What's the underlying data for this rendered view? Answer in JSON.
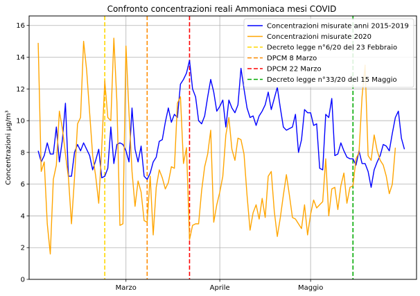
{
  "chart_data": {
    "type": "line",
    "title": "Confronto concentrazioni reali Ammoniaca mesi COVID",
    "xlabel": "",
    "ylabel": "Concentrazioni µg/m³",
    "x_ticks": [
      {
        "label": "Marzo",
        "day": 29
      },
      {
        "label": "Aprile",
        "day": 60
      },
      {
        "label": "Maggio",
        "day": 90
      }
    ],
    "xlim": [
      -3,
      125
    ],
    "ylim": [
      0,
      16.6
    ],
    "y_ticks": [
      0,
      2,
      4,
      6,
      8,
      10,
      12,
      14,
      16
    ],
    "grid": true,
    "legend_position": "top-right",
    "series": [
      {
        "name": "Concentrazioni misurate anni 2015-2019",
        "color": "#0000ff",
        "values": [
          8.1,
          7.4,
          7.8,
          8.6,
          7.9,
          7.9,
          9.6,
          7.4,
          8.8,
          11.1,
          6.5,
          6.5,
          8.0,
          8.5,
          8.1,
          8.6,
          8.2,
          7.8,
          6.9,
          7.5,
          8.2,
          6.4,
          6.5,
          7.0,
          9.6,
          7.3,
          8.5,
          8.6,
          8.5,
          8.1,
          7.4,
          10.8,
          8.2,
          7.4,
          8.4,
          6.5,
          6.3,
          6.7,
          7.4,
          7.7,
          8.7,
          8.8,
          9.9,
          10.8,
          9.9,
          10.4,
          10.2,
          12.3,
          12.6,
          13.0,
          13.8,
          12.0,
          11.5,
          10.0,
          9.8,
          10.3,
          11.5,
          12.6,
          11.8,
          10.6,
          10.9,
          11.3,
          9.6,
          11.3,
          10.8,
          10.5,
          11.0,
          13.3,
          12.0,
          10.8,
          10.2,
          10.3,
          9.7,
          10.3,
          10.6,
          11.0,
          11.8,
          10.7,
          11.4,
          12.1,
          10.8,
          9.6,
          9.4,
          9.5,
          9.6,
          10.4,
          8.0,
          8.8,
          10.7,
          10.5,
          10.5,
          9.7,
          9.8,
          7.0,
          6.9,
          10.4,
          10.2,
          11.4,
          7.8,
          7.9,
          8.6,
          8.1,
          7.7,
          7.6,
          7.6,
          7.2,
          8.1,
          7.3,
          7.3,
          6.8,
          5.8,
          6.9,
          7.4,
          7.8,
          8.5,
          8.4,
          8.1,
          9.2,
          10.2,
          10.6,
          8.9,
          8.2
        ],
        "x_start": 0
      },
      {
        "name": "Concentrazioni misurate 2020",
        "color": "#ffa500",
        "values": [
          14.9,
          6.8,
          7.4,
          3.5,
          1.6,
          6.3,
          7.2,
          10.6,
          9.5,
          7.9,
          6.4,
          3.5,
          6.4,
          9.8,
          10.2,
          15.0,
          13.2,
          10.5,
          7.8,
          6.5,
          4.8,
          8.3,
          12.5,
          10.2,
          10.0,
          15.2,
          11.2,
          3.4,
          3.5,
          14.7,
          10.5,
          6.8,
          4.6,
          6.2,
          5.5,
          3.7,
          3.6,
          6.5,
          2.8,
          5.8,
          6.9,
          6.4,
          5.7,
          6.1,
          7.1,
          7.0,
          11.1,
          11.5,
          7.3,
          8.3,
          2.5,
          3.4,
          3.5,
          3.5,
          5.6,
          7.1,
          7.9,
          9.4,
          3.6,
          4.7,
          5.5,
          6.5,
          9.1,
          10.2,
          8.2,
          7.5,
          8.9,
          8.8,
          7.9,
          5.3,
          3.1,
          4.2,
          4.7,
          3.8,
          5.1,
          3.9,
          6.5,
          6.8,
          4.3,
          2.7,
          3.9,
          5.3,
          6.6,
          5.3,
          3.9,
          3.8,
          3.5,
          3.2,
          4.7,
          2.8,
          4.1,
          5.0,
          4.5,
          4.7,
          4.9,
          7.6,
          4.0,
          5.7,
          5.8,
          4.4,
          5.9,
          6.7,
          4.8,
          5.8,
          5.9,
          7.6,
          8.0,
          11.5,
          13.5,
          7.8,
          7.5,
          9.1,
          8.1,
          7.5,
          7.2,
          6.5,
          5.4,
          6.0,
          8.3
        ],
        "x_start": 0
      }
    ],
    "vlines": [
      {
        "name": "Decreto legge n°6/20 del 23 Febbraio",
        "day": 22,
        "color": "#ffd700"
      },
      {
        "name": "DPCM 8 Marzo",
        "day": 36,
        "color": "#ff8c00"
      },
      {
        "name": "DPCM 22 Marzo",
        "day": 50,
        "color": "#ff0000"
      },
      {
        "name": "Decreto legge n°33/20 del 15 Maggio",
        "day": 104,
        "color": "#00aa00"
      }
    ]
  }
}
